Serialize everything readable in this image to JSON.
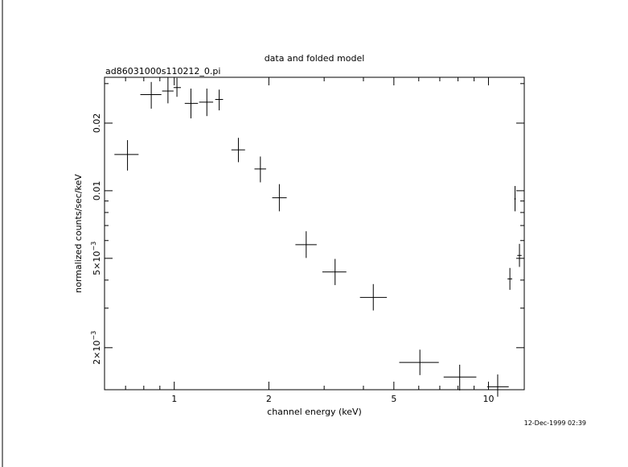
{
  "chart_data": {
    "type": "scatter",
    "title": "data and folded model",
    "subtitle": "ad86031000s110212_0.pi",
    "xlabel": "channel energy (keV)",
    "ylabel": "normalized counts/sec/keV",
    "timestamp": "12-Dec-1999 02:39",
    "x_scale": "log",
    "y_scale": "log",
    "xlim": [
      0.6,
      13.0
    ],
    "ylim": [
      0.0013,
      0.032
    ],
    "x_ticks": [
      {
        "value": 1,
        "label": "1"
      },
      {
        "value": 2,
        "label": "2"
      },
      {
        "value": 5,
        "label": "5"
      },
      {
        "value": 10,
        "label": "10"
      }
    ],
    "y_ticks": [
      {
        "value": 0.002,
        "label_main": "2×10",
        "label_exp": "−3"
      },
      {
        "value": 0.005,
        "label_main": "5×10",
        "label_exp": "−3"
      },
      {
        "value": 0.01,
        "label_main": "0.01",
        "label_exp": ""
      },
      {
        "value": 0.02,
        "label_main": "0.02",
        "label_exp": ""
      }
    ],
    "grid": false,
    "points": [
      {
        "x": 0.71,
        "xlo": 0.645,
        "xhi": 0.77,
        "y": 0.0145,
        "ylo": 0.0123,
        "yhi": 0.0168
      },
      {
        "x": 0.845,
        "xlo": 0.78,
        "xhi": 0.91,
        "y": 0.0268,
        "ylo": 0.0232,
        "yhi": 0.0305
      },
      {
        "x": 0.955,
        "xlo": 0.915,
        "xhi": 0.995,
        "y": 0.0278,
        "ylo": 0.0245,
        "yhi": 0.032
      },
      {
        "x": 1.02,
        "xlo": 0.995,
        "xhi": 1.05,
        "y": 0.0288,
        "ylo": 0.0262,
        "yhi": 0.0318
      },
      {
        "x": 1.13,
        "xlo": 1.08,
        "xhi": 1.19,
        "y": 0.0245,
        "ylo": 0.021,
        "yhi": 0.0285
      },
      {
        "x": 1.27,
        "xlo": 1.2,
        "xhi": 1.33,
        "y": 0.0248,
        "ylo": 0.0215,
        "yhi": 0.0285
      },
      {
        "x": 1.39,
        "xlo": 1.35,
        "xhi": 1.43,
        "y": 0.0255,
        "ylo": 0.0228,
        "yhi": 0.0282
      },
      {
        "x": 1.6,
        "xlo": 1.52,
        "xhi": 1.68,
        "y": 0.0152,
        "ylo": 0.0134,
        "yhi": 0.0172
      },
      {
        "x": 1.88,
        "xlo": 1.8,
        "xhi": 1.96,
        "y": 0.0125,
        "ylo": 0.0109,
        "yhi": 0.0142
      },
      {
        "x": 2.16,
        "xlo": 2.05,
        "xhi": 2.28,
        "y": 0.0093,
        "ylo": 0.0081,
        "yhi": 0.0107
      },
      {
        "x": 2.63,
        "xlo": 2.43,
        "xhi": 2.84,
        "y": 0.00575,
        "ylo": 0.00502,
        "yhi": 0.0066
      },
      {
        "x": 3.25,
        "xlo": 2.96,
        "xhi": 3.53,
        "y": 0.00435,
        "ylo": 0.0038,
        "yhi": 0.00497
      },
      {
        "x": 4.3,
        "xlo": 3.9,
        "xhi": 4.75,
        "y": 0.00335,
        "ylo": 0.00293,
        "yhi": 0.00384
      },
      {
        "x": 6.05,
        "xlo": 5.2,
        "xhi": 6.95,
        "y": 0.00172,
        "ylo": 0.00151,
        "yhi": 0.00196
      },
      {
        "x": 8.1,
        "xlo": 7.2,
        "xhi": 9.15,
        "y": 0.00148,
        "ylo": 0.00129,
        "yhi": 0.00168
      },
      {
        "x": 10.7,
        "xlo": 9.9,
        "xhi": 11.6,
        "y": 0.00134,
        "ylo": 0.00121,
        "yhi": 0.00152
      },
      {
        "x": 11.7,
        "xlo": 11.5,
        "xhi": 11.9,
        "y": 0.00405,
        "ylo": 0.00362,
        "yhi": 0.00453
      },
      {
        "x": 12.15,
        "xlo": 12.08,
        "xhi": 12.22,
        "y": 0.0092,
        "ylo": 0.0081,
        "yhi": 0.0105
      },
      {
        "x": 12.55,
        "xlo": 12.35,
        "xhi": 12.75,
        "y": 0.00515,
        "ylo": 0.00458,
        "yhi": 0.0058
      }
    ]
  }
}
